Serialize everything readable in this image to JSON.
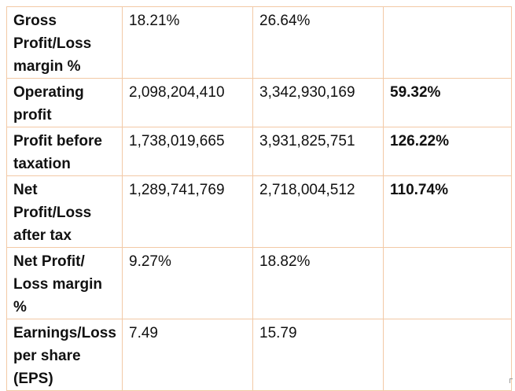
{
  "table": {
    "rows": [
      {
        "label": "Gross Profit/Loss margin %",
        "v1": "18.21%",
        "v2": "26.64%",
        "change": ""
      },
      {
        "label": "Operating profit",
        "v1": "2,098,204,410",
        "v2": "3,342,930,169",
        "change": "59.32%"
      },
      {
        "label": "Profit before taxation",
        "v1": "1,738,019,665",
        "v2": "3,931,825,751",
        "change": "126.22%"
      },
      {
        "label": "Net Profit/Loss after tax",
        "v1": "1,289,741,769",
        "v2": "2,718,004,512",
        "change": "110.74%"
      },
      {
        "label": "Net Profit/ Loss margin %",
        "v1": "9.27%",
        "v2": "18.82%",
        "change": ""
      },
      {
        "label": "Earnings/Loss per share (EPS)",
        "v1": "7.49",
        "v2": "15.79",
        "change": ""
      }
    ]
  },
  "colors": {
    "border": "#f2c9a6",
    "text": "#111111",
    "background": "#ffffff"
  }
}
